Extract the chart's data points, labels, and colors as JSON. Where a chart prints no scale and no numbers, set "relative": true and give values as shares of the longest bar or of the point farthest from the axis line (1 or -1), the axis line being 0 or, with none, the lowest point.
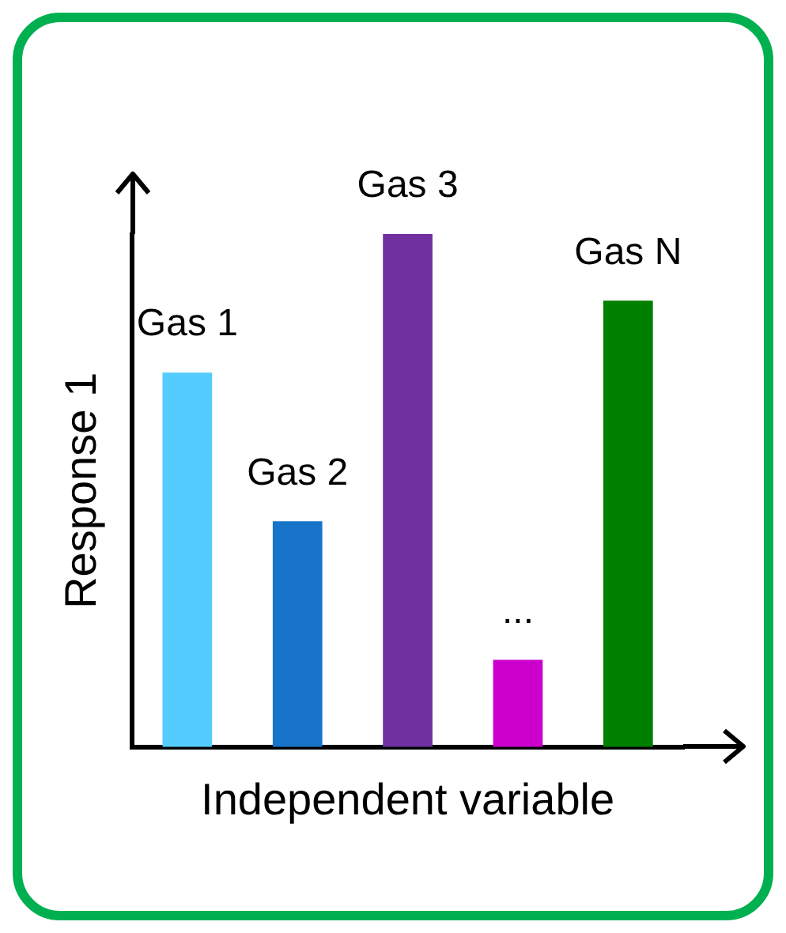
{
  "chart_data": {
    "type": "bar",
    "relative": true,
    "xlabel": "Independent variable",
    "ylabel": "Response 1",
    "categories": [
      "Gas 1",
      "Gas 2",
      "Gas 3",
      "...",
      "Gas N"
    ],
    "values": [
      0.73,
      0.44,
      1,
      0.17,
      0.87
    ],
    "colors": [
      "#55ccff",
      "#1874c8",
      "#7030a0",
      "#cc00cc",
      "#008000"
    ],
    "grid": false,
    "legend": false
  }
}
